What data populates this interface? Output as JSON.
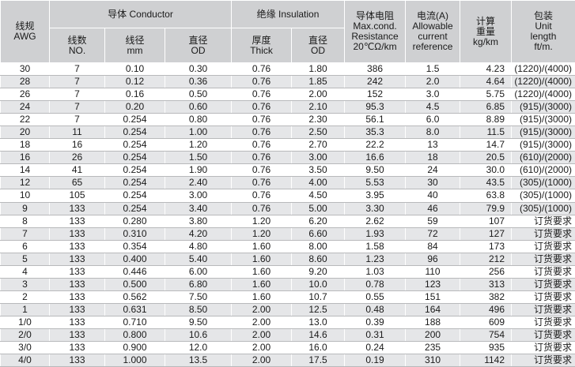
{
  "headers": {
    "awg": "线规\nAWG",
    "conductor": "导体 Conductor",
    "insulation": "绝缘 Insulation",
    "resistance": "导体电阻\nMax.cond.\nResistance\n20℃Ω/km",
    "current": "电流(A)\nAllowable\ncurrent\nreference",
    "weight": "计算\n重量\nkg/km",
    "package": "包装\nUnit\nlength\nft/m.",
    "strands": "线数\nNO.",
    "wire_dia": "线径\nmm",
    "cond_od": "直径\nOD",
    "thickness": "厚度\nThick",
    "ins_od": "直径\nOD"
  },
  "rows": [
    [
      "30",
      "7",
      "0.10",
      "0.30",
      "0.76",
      "1.80",
      "386",
      "1.5",
      "4.23",
      "(1220)/(4000)"
    ],
    [
      "28",
      "7",
      "0.12",
      "0.36",
      "0.76",
      "1.85",
      "242",
      "2.0",
      "4.64",
      "(1220)/(4000)"
    ],
    [
      "26",
      "7",
      "0.16",
      "0.50",
      "0.76",
      "2.00",
      "152",
      "3.0",
      "5.75",
      "(1220)/(4000)"
    ],
    [
      "24",
      "7",
      "0.20",
      "0.60",
      "0.76",
      "2.10",
      "95.3",
      "4.5",
      "6.85",
      "(915)/(3000)"
    ],
    [
      "22",
      "7",
      "0.254",
      "0.80",
      "0.76",
      "2.30",
      "56.1",
      "6.0",
      "8.89",
      "(915)/(3000)"
    ],
    [
      "20",
      "11",
      "0.254",
      "1.00",
      "0.76",
      "2.50",
      "35.3",
      "8.0",
      "11.5",
      "(915)/(3000)"
    ],
    [
      "18",
      "16",
      "0.254",
      "1.20",
      "0.76",
      "2.70",
      "22.2",
      "13",
      "14.7",
      "(915)/(3000)"
    ],
    [
      "16",
      "26",
      "0.254",
      "1.50",
      "0.76",
      "3.00",
      "16.6",
      "18",
      "20.5",
      "(610)/(2000)"
    ],
    [
      "14",
      "41",
      "0.254",
      "1.90",
      "0.76",
      "3.50",
      "9.50",
      "24",
      "30.0",
      "(610)/(2000)"
    ],
    [
      "12",
      "65",
      "0.254",
      "2.40",
      "0.76",
      "4.00",
      "5.53",
      "30",
      "43.5",
      "(305)/(1000)"
    ],
    [
      "10",
      "105",
      "0.254",
      "3.00",
      "0.76",
      "4.50",
      "3.95",
      "40",
      "63.8",
      "(305)/(1000)"
    ],
    [
      "9",
      "133",
      "0.254",
      "3.40",
      "0.76",
      "5.00",
      "3.30",
      "46",
      "79.9",
      "(305)/(1000)"
    ],
    [
      "8",
      "133",
      "0.280",
      "3.80",
      "1.20",
      "6.20",
      "2.62",
      "59",
      "107",
      "订货要求"
    ],
    [
      "7",
      "133",
      "0.310",
      "4.20",
      "1.20",
      "6.60",
      "1.93",
      "72",
      "127",
      "订货要求"
    ],
    [
      "6",
      "133",
      "0.354",
      "4.80",
      "1.60",
      "8.00",
      "1.58",
      "84",
      "173",
      "订货要求"
    ],
    [
      "5",
      "133",
      "0.400",
      "5.40",
      "1.60",
      "8.60",
      "1.23",
      "96",
      "212",
      "订货要求"
    ],
    [
      "4",
      "133",
      "0.446",
      "6.00",
      "1.60",
      "9.20",
      "1.03",
      "110",
      "256",
      "订货要求"
    ],
    [
      "3",
      "133",
      "0.500",
      "6.80",
      "1.60",
      "10.0",
      "0.78",
      "123",
      "313",
      "订货要求"
    ],
    [
      "2",
      "133",
      "0.562",
      "7.50",
      "1.60",
      "10.7",
      "0.55",
      "151",
      "382",
      "订货要求"
    ],
    [
      "1",
      "133",
      "0.631",
      "8.50",
      "2.00",
      "12.5",
      "0.48",
      "164",
      "496",
      "订货要求"
    ],
    [
      "1/0",
      "133",
      "0.710",
      "9.50",
      "2.00",
      "13.0",
      "0.39",
      "188",
      "609",
      "订货要求"
    ],
    [
      "2/0",
      "133",
      "0.800",
      "10.6",
      "2.00",
      "14.6",
      "0.31",
      "200",
      "754",
      "订货要求"
    ],
    [
      "3/0",
      "133",
      "0.900",
      "12.0",
      "2.00",
      "16.0",
      "0.24",
      "235",
      "935",
      "订货要求"
    ],
    [
      "4/0",
      "133",
      "1.000",
      "13.5",
      "2.00",
      "17.5",
      "0.19",
      "310",
      "1142",
      "订货要求"
    ]
  ]
}
